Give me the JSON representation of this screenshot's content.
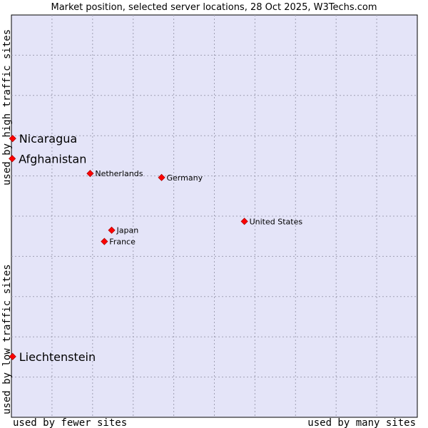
{
  "chart_data": {
    "type": "scatter",
    "title": "Market position, selected server locations, 28 Oct 2025, W3Techs.com",
    "xlabel_left": "used by fewer sites",
    "xlabel_right": "used by many sites",
    "ylabel_bottom": "used by low traffic sites",
    "ylabel_top": "used by high traffic sites",
    "xlim": [
      0,
      100
    ],
    "ylim": [
      0,
      100
    ],
    "grid": true,
    "point_color": "#ff0000",
    "plot_background": "#e4e4f8",
    "points": [
      {
        "name": "Nicaragua",
        "x": 0.3,
        "y": 69.3,
        "emphasis": true
      },
      {
        "name": "Afghanistan",
        "x": 0.2,
        "y": 64.3,
        "emphasis": true
      },
      {
        "name": "Liechtenstein",
        "x": 0.3,
        "y": 15.1,
        "emphasis": true
      },
      {
        "name": "Netherlands",
        "x": 19.4,
        "y": 60.6,
        "emphasis": false
      },
      {
        "name": "Germany",
        "x": 37.0,
        "y": 59.6,
        "emphasis": false
      },
      {
        "name": "United States",
        "x": 57.4,
        "y": 48.7,
        "emphasis": false
      },
      {
        "name": "Japan",
        "x": 24.7,
        "y": 46.5,
        "emphasis": false
      },
      {
        "name": "France",
        "x": 22.9,
        "y": 43.7,
        "emphasis": false
      }
    ]
  }
}
